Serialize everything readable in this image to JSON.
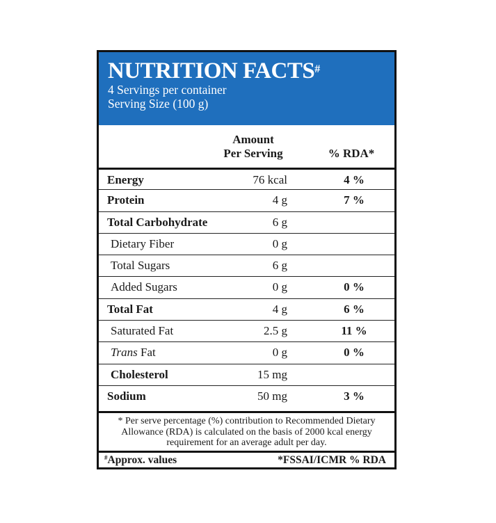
{
  "header": {
    "title": "NUTRITION FACTS",
    "title_mark": "#",
    "servings": "4 Servings per container",
    "serving_size": "Serving Size (100 g)",
    "bg_color": "#1f6fbd"
  },
  "columns": {
    "amount_line1": "Amount",
    "amount_line2": "Per Serving",
    "rda": "% RDA*"
  },
  "rows": [
    {
      "name": "Energy",
      "amount": "76 kcal",
      "rda": "4 %"
    },
    {
      "name": "Protein",
      "amount": "4 g",
      "rda": "7 %"
    },
    {
      "name": "Total Carbohydrate",
      "amount": "6 g",
      "rda": ""
    },
    {
      "name": "Dietary Fiber",
      "amount": "0 g",
      "rda": ""
    },
    {
      "name": "Total Sugars",
      "amount": "6 g",
      "rda": ""
    },
    {
      "name": "Added Sugars",
      "amount": "0 g",
      "rda": "0 %"
    },
    {
      "name": "Total Fat",
      "amount": "4 g",
      "rda": "6 %"
    },
    {
      "name": "Saturated Fat",
      "amount": "2.5 g",
      "rda": "11 %"
    },
    {
      "name_italic": "Trans",
      "name": "Fat",
      "amount": "0 g",
      "rda": "0 %"
    },
    {
      "name": "Cholesterol",
      "amount": "15 mg",
      "rda": ""
    },
    {
      "name": "Sodium",
      "amount": "50 mg",
      "rda": "3 %"
    }
  ],
  "footnote": {
    "line1": "* Per serve percentage (%) contribution to Recommended Dietary",
    "line2": "Allowance (RDA) is calculated on the basis of 2000 kcal energy",
    "line3": "requirement for an average adult per day."
  },
  "footer": {
    "approx_mark": "#",
    "approx": "Approx. values",
    "source": "*FSSAI/ICMR % RDA"
  }
}
